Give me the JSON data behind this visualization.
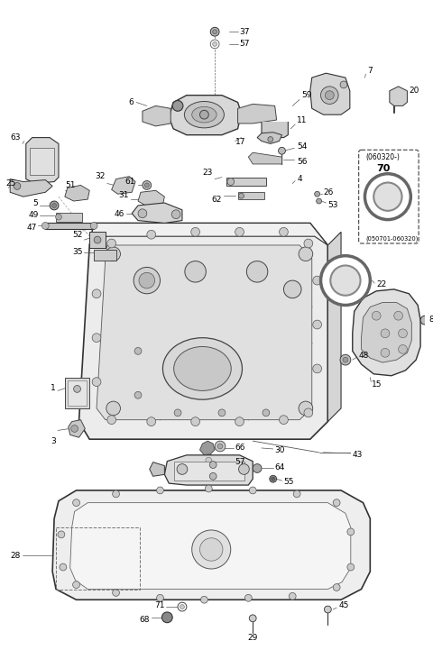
{
  "bg_color": "#ffffff",
  "fig_width": 4.8,
  "fig_height": 7.21,
  "dpi": 100,
  "label_fontsize": 6.5,
  "label_color": "#000000",
  "line_color": "#444444",
  "part_color": "#888888",
  "edge_color": "#333333"
}
